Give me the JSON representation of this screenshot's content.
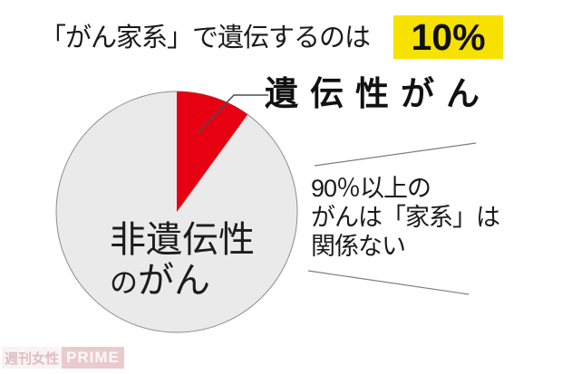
{
  "header": {
    "title": "「がん家系」で遺伝するのは",
    "highlight": "10%"
  },
  "chart_data": {
    "type": "pie",
    "title": "「がん家系」で遺伝するのは10%",
    "slices": [
      {
        "label": "遺伝性がん",
        "value": 10,
        "color": "#e60012"
      },
      {
        "label": "非遺伝性のがん",
        "value": 90,
        "color": "#eaeaea"
      }
    ],
    "start_angle_deg": 0,
    "direction": "clockwise",
    "legend_position": "none",
    "annotations": [
      "遺伝性がん",
      "非遺伝性のがん",
      "90％以上のがんは「家系」は関係ない"
    ]
  },
  "pie": {
    "callout_label": "遺伝性がん",
    "inner_label_line1": "非遺伝性",
    "inner_label_line2_small": "の",
    "inner_label_line2_rest": "がん"
  },
  "annotation": {
    "lines": [
      "90％以上の",
      "がんは「家系」は",
      "関係ない"
    ]
  },
  "watermark": {
    "brand": "週刊女性",
    "suffix": "PRIME"
  },
  "colors": {
    "highlight_bg": "#f6e100",
    "slice_hereditary": "#e60012",
    "slice_nonhereditary": "#eaeaea",
    "pie_outline": "#8c8c8c",
    "leader_line": "#4d4d4d",
    "emphasis_line": "#7d7d7d"
  }
}
